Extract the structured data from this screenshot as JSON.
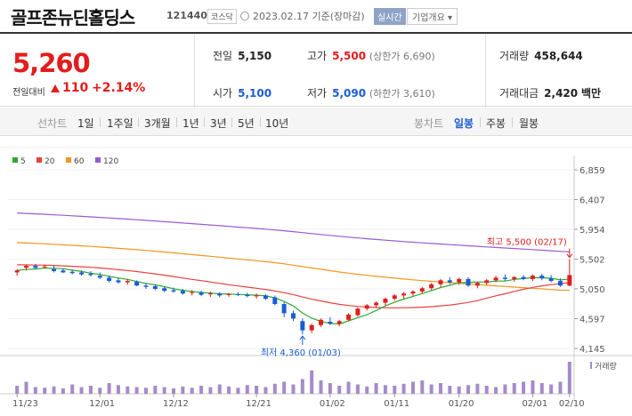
{
  "header": {
    "title": "골프존뉴딘홀딩스",
    "code": "121440",
    "market": "코스닥",
    "date": "2023.02.17 기준(장마감)",
    "realtime_label": "실시간",
    "corp_label": "기업개요 ▾"
  },
  "quote": {
    "price": "5,260",
    "change_label": "전일대비",
    "change": "110",
    "change_pct": "+2.14%",
    "prev_label": "전일",
    "prev": "5,150",
    "high_label": "고가",
    "high": "5,500",
    "upper_limit": "(상한가 6,690)",
    "volume_label": "거래량",
    "volume": "458,644",
    "open_label": "시가",
    "open": "5,100",
    "low_label": "저가",
    "low": "5,090",
    "lower_limit": "(하한가 3,610)",
    "amount_label": "거래대금",
    "amount": "2,420",
    "amount_unit": "백만"
  },
  "periods": {
    "line_label": "선차트",
    "line_items": [
      "1일",
      "1주일",
      "3개월",
      "1년",
      "3년",
      "5년",
      "10년"
    ],
    "candle_label": "봉차트",
    "candle_items": [
      "일봉",
      "주봉",
      "월봉"
    ],
    "active_candle": "일봉"
  },
  "chart_data": {
    "type": "candlestick",
    "legend": [
      {
        "name": "5",
        "color": "#2eaa2e"
      },
      {
        "name": "20",
        "color": "#e8413b"
      },
      {
        "name": "60",
        "color": "#f0961e"
      },
      {
        "name": "120",
        "color": "#9b59d0"
      }
    ],
    "y_ticks": [
      6859,
      6407,
      5954,
      5502,
      5050,
      4597,
      4145
    ],
    "y_tick_labels": [
      "6,859",
      "6,407",
      "5,954",
      "5,502",
      "5,050",
      "4,597",
      "4,145"
    ],
    "ylim": [
      4145,
      6859
    ],
    "x_labels": [
      "11/23",
      "12/01",
      "12/12",
      "12/21",
      "01/02",
      "01/11",
      "01/20",
      "02/01",
      "02/10"
    ],
    "high_annotation": "최고 5,500 (02/17)",
    "low_annotation": "최저 4,360 (01/03)",
    "volume_label": "거래량",
    "candles": [
      [
        5300,
        5350,
        5250,
        5330
      ],
      [
        5370,
        5420,
        5330,
        5400
      ],
      [
        5400,
        5430,
        5350,
        5370
      ],
      [
        5380,
        5420,
        5360,
        5390
      ],
      [
        5350,
        5400,
        5300,
        5320
      ],
      [
        5330,
        5360,
        5290,
        5300
      ],
      [
        5310,
        5340,
        5270,
        5290
      ],
      [
        5300,
        5330,
        5250,
        5270
      ],
      [
        5280,
        5320,
        5240,
        5260
      ],
      [
        5250,
        5300,
        5200,
        5220
      ],
      [
        5220,
        5250,
        5150,
        5170
      ],
      [
        5180,
        5220,
        5130,
        5150
      ],
      [
        5150,
        5200,
        5110,
        5170
      ],
      [
        5160,
        5180,
        5090,
        5100
      ],
      [
        5100,
        5140,
        5050,
        5080
      ],
      [
        5090,
        5120,
        5030,
        5050
      ],
      [
        5060,
        5090,
        5000,
        5020
      ],
      [
        5030,
        5070,
        4990,
        5010
      ],
      [
        5020,
        5050,
        4960,
        4980
      ],
      [
        4990,
        5030,
        4950,
        5000
      ],
      [
        5000,
        5020,
        4940,
        4960
      ],
      [
        4970,
        5010,
        4930,
        4980
      ],
      [
        4980,
        5000,
        4920,
        4950
      ],
      [
        4960,
        4990,
        4930,
        4970
      ],
      [
        4970,
        5000,
        4940,
        4960
      ],
      [
        4960,
        4990,
        4920,
        4940
      ],
      [
        4940,
        4980,
        4900,
        4950
      ],
      [
        4950,
        4970,
        4880,
        4900
      ],
      [
        4920,
        4950,
        4800,
        4820
      ],
      [
        4820,
        4850,
        4620,
        4680
      ],
      [
        4680,
        4720,
        4560,
        4600
      ],
      [
        4560,
        4600,
        4360,
        4420
      ],
      [
        4420,
        4520,
        4380,
        4500
      ],
      [
        4500,
        4600,
        4470,
        4580
      ],
      [
        4550,
        4620,
        4500,
        4520
      ],
      [
        4520,
        4580,
        4480,
        4560
      ],
      [
        4580,
        4680,
        4560,
        4660
      ],
      [
        4650,
        4770,
        4630,
        4750
      ],
      [
        4750,
        4820,
        4720,
        4800
      ],
      [
        4800,
        4860,
        4760,
        4840
      ],
      [
        4840,
        4920,
        4800,
        4900
      ],
      [
        4900,
        4970,
        4870,
        4950
      ],
      [
        4950,
        5000,
        4900,
        4980
      ],
      [
        4980,
        5030,
        4940,
        5010
      ],
      [
        5010,
        5080,
        4980,
        5060
      ],
      [
        5060,
        5140,
        5030,
        5120
      ],
      [
        5120,
        5200,
        5080,
        5180
      ],
      [
        5180,
        5230,
        5120,
        5150
      ],
      [
        5150,
        5220,
        5110,
        5200
      ],
      [
        5200,
        5230,
        5080,
        5100
      ],
      [
        5100,
        5160,
        5060,
        5140
      ],
      [
        5140,
        5200,
        5110,
        5180
      ],
      [
        5180,
        5250,
        5150,
        5220
      ],
      [
        5220,
        5270,
        5170,
        5200
      ],
      [
        5200,
        5240,
        5160,
        5230
      ],
      [
        5230,
        5260,
        5180,
        5200
      ],
      [
        5200,
        5270,
        5170,
        5250
      ],
      [
        5250,
        5280,
        5180,
        5210
      ],
      [
        5210,
        5260,
        5150,
        5170
      ],
      [
        5170,
        5210,
        5080,
        5100
      ],
      [
        5100,
        5500,
        5090,
        5260
      ]
    ],
    "volumes": [
      12,
      18,
      10,
      9,
      11,
      8,
      14,
      10,
      12,
      9,
      16,
      13,
      11,
      10,
      9,
      12,
      10,
      8,
      11,
      9,
      12,
      10,
      14,
      11,
      9,
      13,
      12,
      10,
      15,
      18,
      14,
      22,
      35,
      20,
      16,
      12,
      18,
      14,
      11,
      16,
      13,
      12,
      15,
      18,
      20,
      14,
      16,
      12,
      11,
      13,
      15,
      12,
      10,
      14,
      16,
      18,
      20,
      16,
      14,
      18,
      48
    ]
  }
}
